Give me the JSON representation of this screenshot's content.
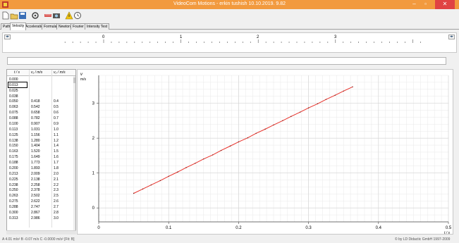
{
  "window": {
    "title": "VideoCom Motions - erkin tushish 10.10.2019.  9.82",
    "controls": [
      "–",
      "▫",
      "✕"
    ]
  },
  "toolbar": {
    "icons": [
      "new-file-icon",
      "open-file-icon",
      "save-file-icon",
      "settings-icon",
      "measure-icon",
      "camera-icon",
      "warning-icon",
      "clock-icon"
    ]
  },
  "tabs": [
    {
      "label": "Path",
      "active": false
    },
    {
      "label": "Velocity",
      "active": true
    },
    {
      "label": "Acceleration",
      "active": false
    },
    {
      "label": "Formula",
      "active": false
    },
    {
      "label": "Newton",
      "active": false
    },
    {
      "label": "Fourier",
      "active": false
    },
    {
      "label": "Intensity Test",
      "active": false
    }
  ],
  "ruler": {
    "labels": [
      "0",
      "1",
      "2",
      "3"
    ]
  },
  "table": {
    "columns": [
      "t / s",
      "v₁ / m/s",
      "v₂ / m/s"
    ],
    "rows": [
      [
        "0.000",
        "",
        ""
      ],
      [
        "0.013",
        "",
        ""
      ],
      [
        "0.025",
        "",
        ""
      ],
      [
        "0.038",
        "",
        ""
      ],
      [
        "0.050",
        "0.418",
        "0.4"
      ],
      [
        "0.063",
        "0.542",
        "0.5"
      ],
      [
        "0.075",
        "0.658",
        "0.6"
      ],
      [
        "0.088",
        "0.782",
        "0.7"
      ],
      [
        "0.100",
        "0.907",
        "0.9"
      ],
      [
        "0.113",
        "1.031",
        "1.0"
      ],
      [
        "0.125",
        "1.156",
        "1.1"
      ],
      [
        "0.138",
        "1.280",
        "1.2"
      ],
      [
        "0.150",
        "1.404",
        "1.4"
      ],
      [
        "0.163",
        "1.520",
        "1.5"
      ],
      [
        "0.175",
        "1.649",
        "1.6"
      ],
      [
        "0.188",
        "1.773",
        "1.7"
      ],
      [
        "0.200",
        "1.893",
        "1.8"
      ],
      [
        "0.213",
        "2.009",
        "2.0"
      ],
      [
        "0.225",
        "2.138",
        "2.1"
      ],
      [
        "0.238",
        "2.258",
        "2.2"
      ],
      [
        "0.250",
        "2.378",
        "2.3"
      ],
      [
        "0.263",
        "2.502",
        "2.5"
      ],
      [
        "0.275",
        "2.622",
        "2.6"
      ],
      [
        "0.288",
        "2.747",
        "2.7"
      ],
      [
        "0.300",
        "2.867",
        "2.8"
      ],
      [
        "0.313",
        "2.986",
        "3.0"
      ]
    ]
  },
  "chart_data": {
    "type": "line",
    "ylabel": "v",
    "yunit": "m/s",
    "xunit": "t / s",
    "xlim": [
      0,
      0.5
    ],
    "ylim": [
      -0.4,
      3.8
    ],
    "xticks": [
      "0",
      "0.1",
      "0.2",
      "0.3",
      "0.4",
      "0.5"
    ],
    "yticks": [
      "0",
      "1",
      "2",
      "3"
    ],
    "grid": true,
    "series": [
      {
        "color": "#e8312a",
        "x": [
          0.05,
          0.063,
          0.075,
          0.088,
          0.1,
          0.113,
          0.125,
          0.138,
          0.15,
          0.163,
          0.175,
          0.188,
          0.2,
          0.213,
          0.225,
          0.238,
          0.25,
          0.263,
          0.275,
          0.288,
          0.3,
          0.313,
          0.325,
          0.338,
          0.35,
          0.363
        ],
        "y": [
          0.418,
          0.542,
          0.658,
          0.782,
          0.907,
          1.031,
          1.156,
          1.28,
          1.404,
          1.52,
          1.649,
          1.773,
          1.893,
          2.009,
          2.138,
          2.258,
          2.378,
          2.502,
          2.622,
          2.747,
          2.867,
          2.986,
          3.11,
          3.23,
          3.35,
          3.47
        ]
      }
    ]
  },
  "status": {
    "left": "A  4.01 m/s²    B  -0.07 m/s    C  -0.0000 m/s²   [Fit: B]",
    "right": "© by LD Didactic GmbH 1997-2009"
  }
}
